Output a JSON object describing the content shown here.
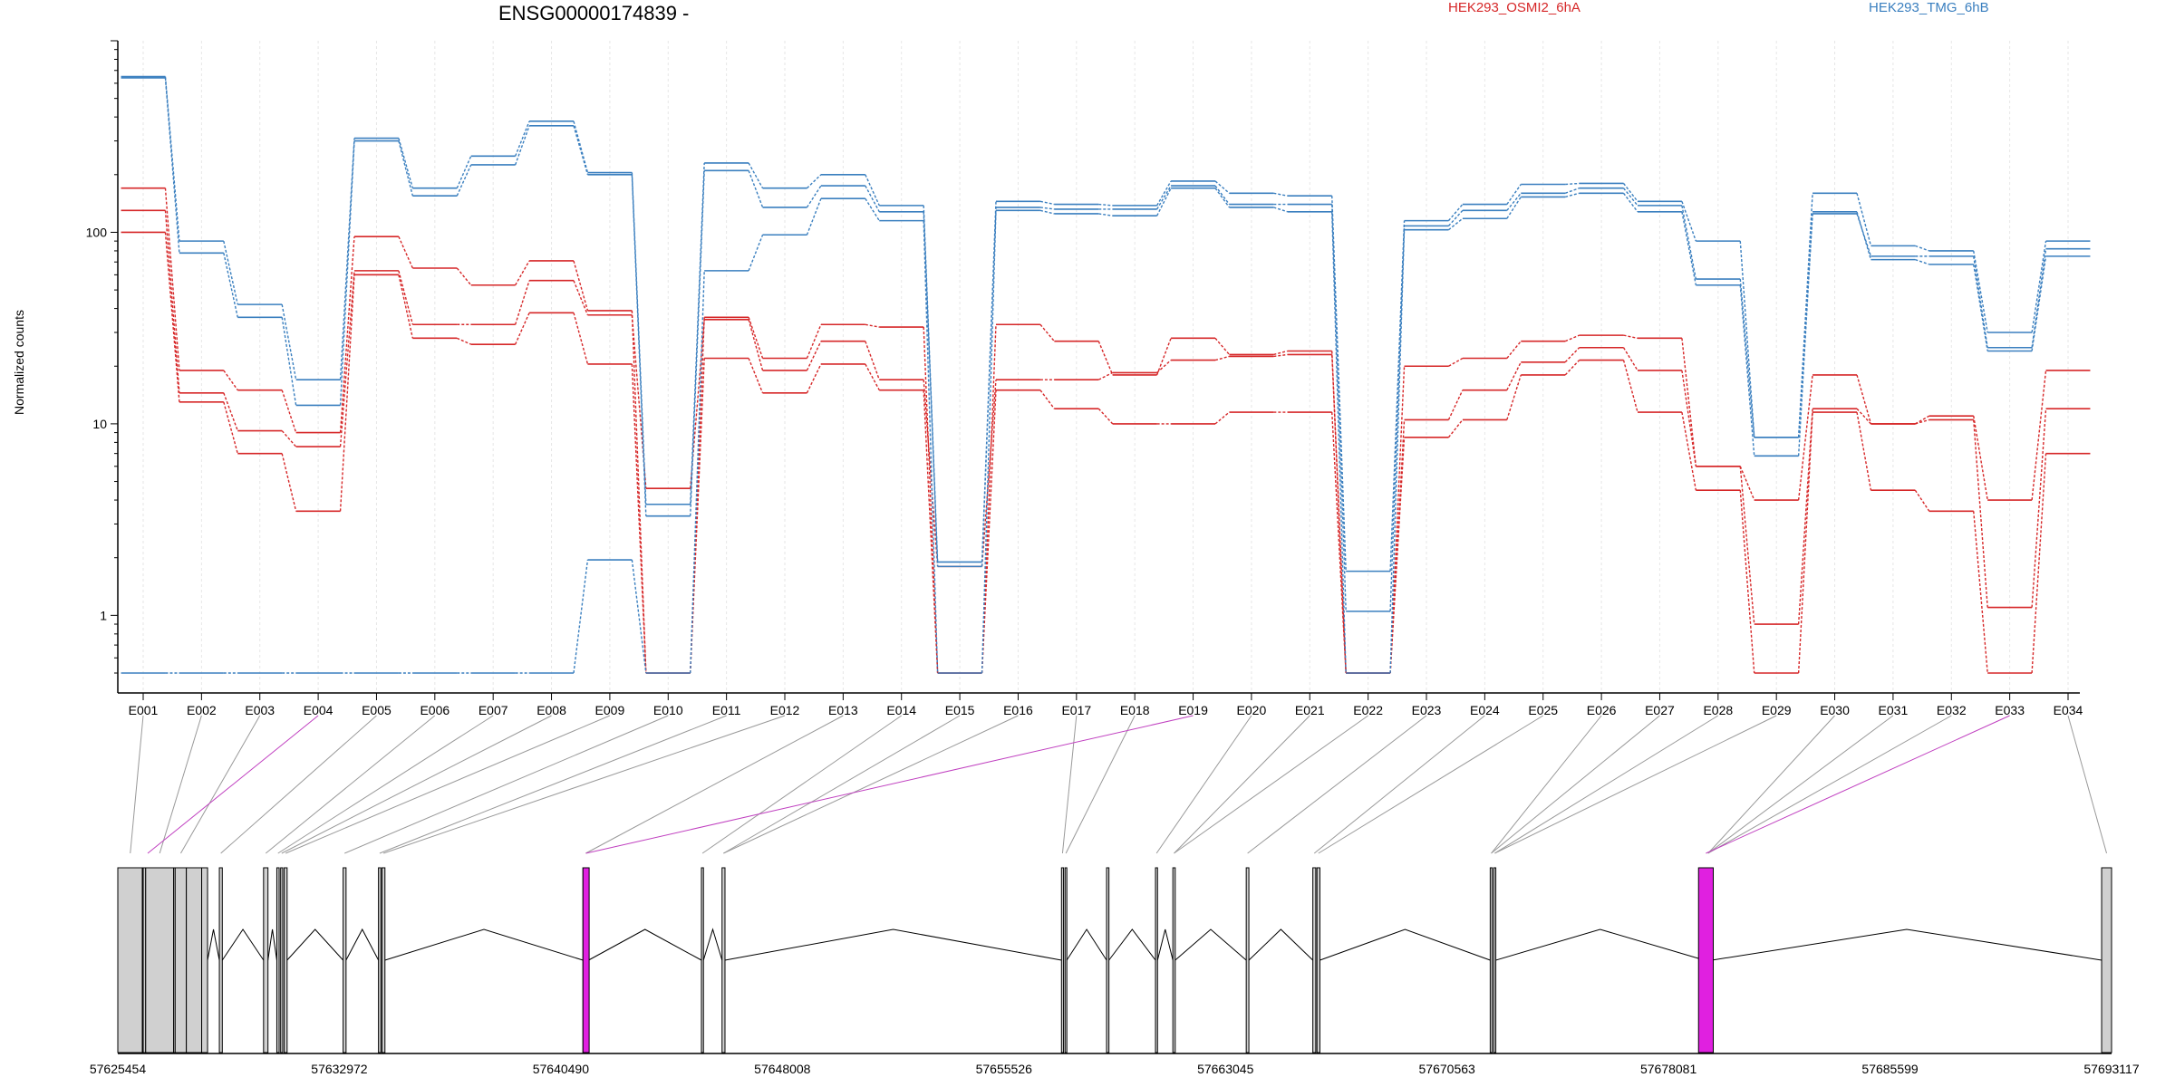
{
  "chart_data": {
    "type": "line",
    "title": "ENSG00000174839 -",
    "ylabel": "Normalized counts",
    "yscale": "log",
    "ylim": [
      0.5,
      1000
    ],
    "yticks": [
      1,
      10,
      100
    ],
    "categories": [
      "E001",
      "E002",
      "E003",
      "E004",
      "E005",
      "E006",
      "E007",
      "E008",
      "E009",
      "E010",
      "E011",
      "E012",
      "E013",
      "E014",
      "E015",
      "E016",
      "E017",
      "E018",
      "E019",
      "E020",
      "E021",
      "E022",
      "E023",
      "E024",
      "E025",
      "E026",
      "E027",
      "E028",
      "E029",
      "E030",
      "E031",
      "E032",
      "E033",
      "E034"
    ],
    "legend": [
      {
        "label": "HEK293_OSMI2_6hA",
        "color": "#d62728"
      },
      {
        "label": "HEK293_TMG_6hB",
        "color": "#3a7fbf"
      }
    ],
    "series": [
      {
        "group": "HEK293_OSMI2_6hA",
        "color": "#d62728",
        "values": [
          170,
          19,
          15,
          9,
          95,
          65,
          53,
          71,
          39,
          0.5,
          36,
          22,
          33,
          32,
          0.5,
          33,
          27,
          18,
          28,
          23,
          24,
          0.5,
          20,
          22,
          27,
          29,
          28,
          6,
          4,
          18,
          10,
          11,
          4,
          19
        ]
      },
      {
        "group": "HEK293_OSMI2_6hA",
        "color": "#d62728",
        "values": [
          130,
          14.5,
          9.2,
          7.6,
          63,
          33,
          33,
          56,
          37,
          4.6,
          35,
          19,
          27,
          17,
          1.8,
          17,
          17,
          18.5,
          21.5,
          22.5,
          23,
          0.5,
          10.5,
          15,
          21,
          25,
          19,
          6,
          0.9,
          12,
          10,
          10.5,
          1.1,
          12
        ]
      },
      {
        "group": "HEK293_OSMI2_6hA",
        "color": "#d62728",
        "values": [
          100,
          13,
          7,
          3.5,
          60,
          28,
          26,
          38,
          20.5,
          0.5,
          22,
          14.5,
          20.5,
          15,
          0.5,
          15,
          12,
          10,
          10,
          11.5,
          11.5,
          0.5,
          8.5,
          10.5,
          18,
          21.5,
          11.5,
          4.5,
          0.5,
          11.5,
          4.5,
          3.5,
          0.5,
          7
        ]
      },
      {
        "group": "HEK293_TMG_6hB",
        "color": "#3a7fbf",
        "values": [
          650,
          90,
          42,
          17,
          310,
          170,
          250,
          380,
          205,
          3.8,
          230,
          170,
          200,
          138,
          1.9,
          145,
          140,
          138,
          185,
          160,
          155,
          1.7,
          115,
          140,
          178,
          180,
          145,
          90,
          8.5,
          160,
          85,
          80,
          30,
          90
        ]
      },
      {
        "group": "HEK293_TMG_6hB",
        "color": "#3a7fbf",
        "values": [
          640,
          78,
          36,
          12.5,
          300,
          155,
          225,
          360,
          200,
          3.3,
          210,
          135,
          175,
          128,
          1.8,
          135,
          132,
          132,
          175,
          140,
          140,
          1.05,
          108,
          130,
          160,
          170,
          138,
          57,
          8.5,
          125,
          75,
          75,
          25,
          82
        ]
      },
      {
        "group": "HEK293_TMG_6hB",
        "color": "#3a7fbf",
        "values": [
          0.5,
          0.5,
          0.5,
          0.5,
          0.5,
          0.5,
          0.5,
          0.5,
          1.95,
          0.5,
          63,
          97,
          150,
          115,
          0.5,
          130,
          125,
          122,
          170,
          135,
          128,
          0.5,
          103,
          118,
          153,
          160,
          128,
          53,
          6.8,
          128,
          72,
          68,
          24,
          75
        ]
      }
    ],
    "gene_model": {
      "coordinate_ticks": [
        "57625454",
        "57632972",
        "57640490",
        "57648008",
        "57655526",
        "57663045",
        "57670563",
        "57678081",
        "57685599",
        "57693117"
      ],
      "highlighted_exons": [
        "E004",
        "E019",
        "E033"
      ]
    }
  }
}
